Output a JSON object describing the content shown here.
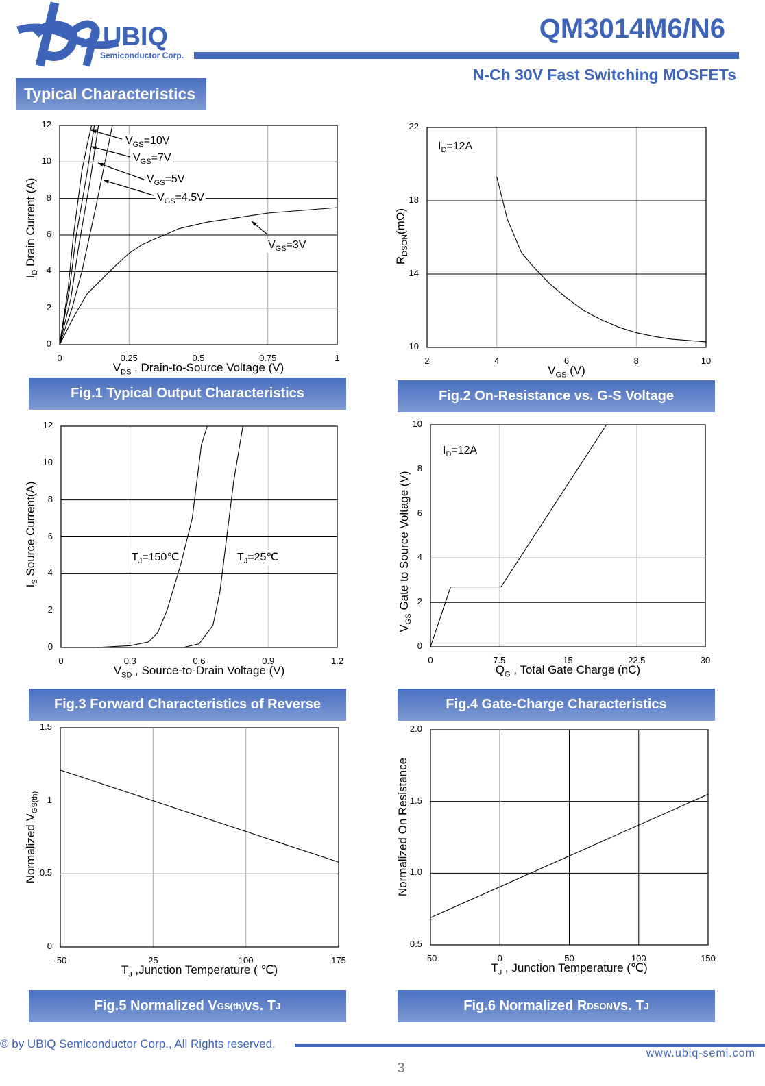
{
  "header": {
    "logo_text": "UBIQ",
    "logo_subtext": "Semiconductor Corp.",
    "part_number": "QM3014M6/N6",
    "subtitle": "N-Ch 30V Fast Switching MOSFETs",
    "section_title": "Typical Characteristics",
    "brand_color": "#3d64b8"
  },
  "captions": [
    {
      "pre": "Fig.1 Typical Output Characteristics",
      "sub": "",
      "mid": "",
      "sub2": ""
    },
    {
      "pre": "Fig.2 On-Resistance vs. G-S Voltage",
      "sub": "",
      "mid": "",
      "sub2": ""
    },
    {
      "pre": "Fig.3 Forward Characteristics of Reverse",
      "sub": "",
      "mid": "",
      "sub2": ""
    },
    {
      "pre": "Fig.4 Gate-Charge Characteristics",
      "sub": "",
      "mid": "",
      "sub2": ""
    },
    {
      "pre": "Fig.5 Normalized V",
      "sub": "GS(th)",
      "mid": " vs. T",
      "sub2": "J"
    },
    {
      "pre": "Fig.6 Normalized R",
      "sub": "DSON",
      "mid": " vs. T",
      "sub2": "J"
    }
  ],
  "chart_data": [
    {
      "type": "line",
      "xlabel": {
        "pre": "V",
        "sub": "DS",
        "post": "  , Drain-to-Source Voltage (V)"
      },
      "ylabel": {
        "pre": "I",
        "sub": "D",
        "post": " Drain Current (A)"
      },
      "xlim": [
        0,
        1
      ],
      "ylim": [
        0,
        12
      ],
      "xticks": [
        "0",
        "0.25",
        "0.5",
        "0.75",
        "1"
      ],
      "yticks": [
        "0",
        "2",
        "4",
        "6",
        "8",
        "10",
        "12"
      ],
      "grid": true,
      "series": [
        {
          "name": {
            "pre": "V",
            "sub": "GS",
            "post": "=10V"
          },
          "x": [
            0,
            0.03,
            0.05,
            0.08,
            0.1,
            0.115
          ],
          "y": [
            0,
            3,
            6,
            9.5,
            11,
            12
          ]
        },
        {
          "name": {
            "pre": "V",
            "sub": "GS",
            "post": "=7V"
          },
          "x": [
            0,
            0.035,
            0.06,
            0.1,
            0.125
          ],
          "y": [
            0,
            3,
            6,
            9.5,
            12
          ]
        },
        {
          "name": {
            "pre": "V",
            "sub": "GS",
            "post": "=5V"
          },
          "x": [
            0,
            0.04,
            0.07,
            0.11,
            0.14
          ],
          "y": [
            0,
            2.5,
            5.5,
            9,
            12
          ]
        },
        {
          "name": {
            "pre": "V",
            "sub": "GS",
            "post": "=4.5V"
          },
          "x": [
            0,
            0.045,
            0.08,
            0.13,
            0.17,
            0.19
          ],
          "y": [
            0,
            2,
            4,
            7.5,
            10.5,
            12
          ]
        },
        {
          "name": {
            "pre": "V",
            "sub": "GS",
            "post": "=3V"
          },
          "x": [
            0,
            0.05,
            0.1,
            0.2,
            0.25,
            0.3,
            0.43,
            0.53,
            0.75,
            1
          ],
          "y": [
            0,
            1.5,
            2.8,
            4.3,
            5,
            5.5,
            6.35,
            6.7,
            7.2,
            7.5
          ]
        }
      ],
      "annotations": []
    },
    {
      "type": "line",
      "xlabel": {
        "pre": "V",
        "sub": "GS",
        "post": " (V)"
      },
      "ylabel": {
        "pre": "R",
        "sub": "DSON",
        "post": "(mΩ)"
      },
      "xlim": [
        2,
        10
      ],
      "ylim": [
        10,
        22
      ],
      "xticks": [
        "2",
        "4",
        "6",
        "8",
        "10"
      ],
      "yticks": [
        "10",
        "14",
        "18",
        "22"
      ],
      "grid": true,
      "series": [
        {
          "x": [
            4,
            4.3,
            4.7,
            5,
            5.5,
            6,
            6.5,
            7,
            7.5,
            8,
            8.5,
            9,
            10
          ],
          "y": [
            19.3,
            17,
            15.2,
            14.5,
            13.5,
            12.7,
            12,
            11.5,
            11.1,
            10.8,
            10.6,
            10.45,
            10.3
          ]
        }
      ],
      "annotations": [
        {
          "pre": "I",
          "sub": "D",
          "post": "=12A"
        }
      ]
    },
    {
      "type": "line",
      "xlabel": {
        "pre": "V",
        "sub": "SD",
        "post": " , Source-to-Drain Voltage (V)"
      },
      "ylabel": {
        "pre": "I",
        "sub": "S",
        "post": " Source Current(A)"
      },
      "xlim": [
        0,
        1.2
      ],
      "ylim": [
        0,
        12
      ],
      "xticks": [
        "0",
        "0.3",
        "0.6",
        "0.9",
        "1.2"
      ],
      "yticks": [
        "0",
        "2",
        "4",
        "6",
        "8",
        "10",
        "12"
      ],
      "grid": true,
      "series": [
        {
          "name": {
            "pre": "T",
            "sub": "J",
            "post": "=150℃"
          },
          "x": [
            0.15,
            0.3,
            0.38,
            0.42,
            0.46,
            0.52,
            0.57,
            0.59,
            0.61,
            0.635
          ],
          "y": [
            0,
            0.1,
            0.3,
            0.8,
            2,
            4.5,
            7,
            9,
            11,
            12
          ]
        },
        {
          "name": {
            "pre": "T",
            "sub": "J",
            "post": "=25℃"
          },
          "x": [
            0.53,
            0.6,
            0.66,
            0.69,
            0.72,
            0.75,
            0.79
          ],
          "y": [
            0,
            0.2,
            1.2,
            3,
            6,
            9,
            12
          ]
        }
      ],
      "annotations": []
    },
    {
      "type": "line",
      "xlabel": {
        "pre": "Q",
        "sub": "G",
        "post": " , Total Gate Charge (nC)"
      },
      "ylabel": {
        "pre": "V",
        "sub": "GS",
        "post": "   Gate to Source Voltage (V)"
      },
      "xlim": [
        0,
        30
      ],
      "ylim": [
        0,
        10
      ],
      "xticks": [
        "0",
        "7.5",
        "15",
        "22.5",
        "30"
      ],
      "yticks": [
        "0",
        "2",
        "4",
        "6",
        "8",
        "10"
      ],
      "grid": true,
      "series": [
        {
          "x": [
            0,
            2.2,
            7.7,
            19.2
          ],
          "y": [
            0,
            2.7,
            2.7,
            10
          ]
        }
      ],
      "annotations": [
        {
          "pre": "I",
          "sub": "D",
          "post": "=12A"
        }
      ]
    },
    {
      "type": "line",
      "xlabel": {
        "pre": "T",
        "sub": "J",
        "post": " ,Junction Temperature ( ℃)"
      },
      "ylabel": {
        "pre": "Normalized V",
        "sub": "GS(th)",
        "post": ""
      },
      "xlim": [
        -50,
        175
      ],
      "ylim": [
        0,
        1.5
      ],
      "xticks": [
        "-50",
        "25",
        "100",
        "175"
      ],
      "yticks": [
        "0",
        "0.5",
        "1",
        "1.5"
      ],
      "grid": true,
      "series": [
        {
          "x": [
            -50,
            175
          ],
          "y": [
            1.21,
            0.58
          ]
        }
      ],
      "annotations": []
    },
    {
      "type": "line",
      "xlabel": {
        "pre": "T",
        "sub": "J",
        "post": " , Junction Temperature (℃)"
      },
      "ylabel": {
        "pre": "Normalized On Resistance",
        "sub": "",
        "post": ""
      },
      "xlim": [
        -50,
        150
      ],
      "ylim": [
        0.5,
        2.0
      ],
      "xticks": [
        "-50",
        "0",
        "50",
        "100",
        "150"
      ],
      "yticks": [
        "0.5",
        "1.0",
        "1.5",
        "2.0"
      ],
      "grid": true,
      "series": [
        {
          "x": [
            -50,
            150
          ],
          "y": [
            0.69,
            1.55
          ]
        }
      ],
      "annotations": []
    }
  ],
  "footer": {
    "copyright": "© by UBIQ Semiconductor Corp., All Rights reserved.",
    "website": "www.ubiq-semi.com",
    "page_number": "3"
  }
}
